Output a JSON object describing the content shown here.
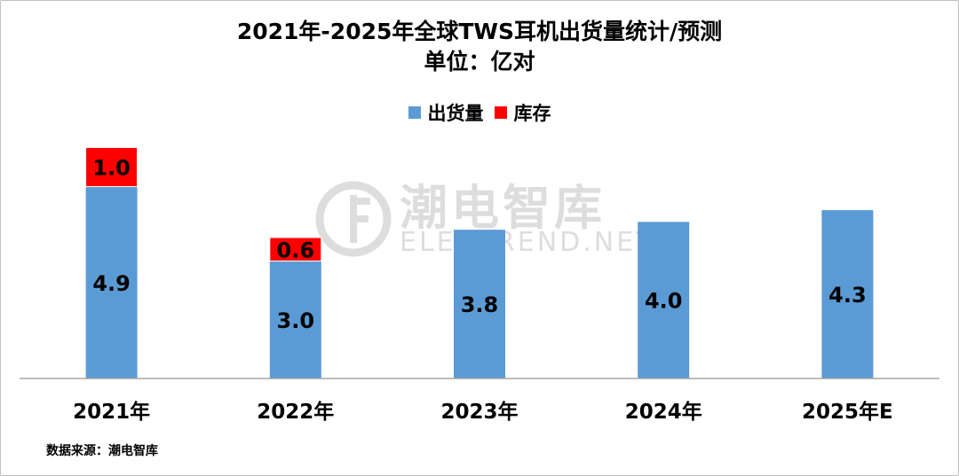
{
  "title_line1": "2021年-2025年全球TWS耳机出货量统计/预测",
  "title_line2": "单位：亿对",
  "legend": [
    {
      "label": "出货量",
      "color": "#5B9BD5"
    },
    {
      "label": "库存",
      "color": "#FF0000"
    }
  ],
  "source": "数据来源：潮电智库",
  "watermark": {
    "cn": "潮电智库",
    "en": "ELECTREND.NET"
  },
  "chart_data": {
    "type": "bar",
    "stacked": true,
    "categories": [
      "2021年",
      "2022年",
      "2023年",
      "2024年",
      "2025年E"
    ],
    "series": [
      {
        "name": "出货量",
        "color": "#5B9BD5",
        "values": [
          4.9,
          3.0,
          3.8,
          4.0,
          4.3
        ]
      },
      {
        "name": "库存",
        "color": "#FF0000",
        "values": [
          1.0,
          0.6,
          null,
          null,
          null
        ]
      }
    ],
    "ylim": [
      0,
      6
    ],
    "grid": false,
    "legend_position": "top-center",
    "data_labels": true
  }
}
